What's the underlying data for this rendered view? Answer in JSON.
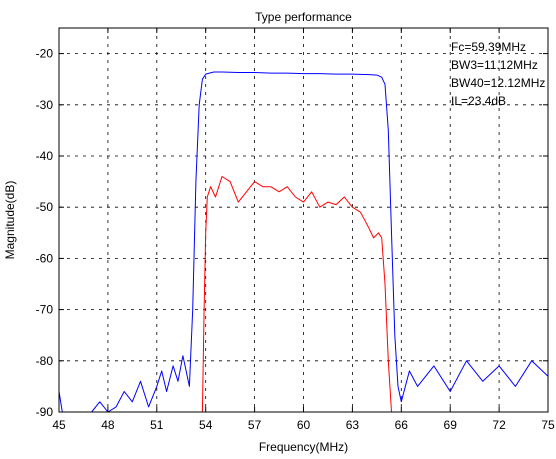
{
  "chart_data": {
    "type": "line",
    "title": "Type performance",
    "xlabel": "Frequency(MHz)",
    "ylabel": "Magnitude(dB)",
    "xlim": [
      45,
      75
    ],
    "ylim": [
      -90,
      -15
    ],
    "xticks": [
      45,
      48,
      51,
      54,
      57,
      60,
      63,
      66,
      69,
      72,
      75
    ],
    "yticks": [
      -90,
      -80,
      -70,
      -60,
      -50,
      -40,
      -30,
      -20
    ],
    "grid": true,
    "annotations": [
      "Fc=59.39MHz",
      "BW3=11.12MHz",
      "BW40=12.12MHz",
      "IL=23.4dB"
    ],
    "series": [
      {
        "color": "#0000ff",
        "x": [
          45,
          45.2,
          46,
          47,
          47.5,
          48,
          48.5,
          49,
          49.5,
          50,
          50.5,
          51,
          51.3,
          51.6,
          52,
          52.3,
          52.6,
          53,
          53.2,
          53.4,
          53.6,
          53.8,
          54,
          54.5,
          55,
          56,
          57,
          58,
          59,
          60,
          61,
          62,
          63,
          64,
          64.5,
          64.8,
          65.0,
          65.2,
          65.4,
          65.6,
          65.8,
          66,
          66.5,
          67,
          68,
          69,
          70,
          71,
          72,
          73,
          74,
          75
        ],
        "y": [
          -86,
          -90,
          -90,
          -90,
          -88,
          -90,
          -89,
          -86,
          -88,
          -84,
          -89,
          -85,
          -82,
          -86,
          -81,
          -84,
          -79,
          -85,
          -70,
          -45,
          -30,
          -25,
          -24,
          -23.6,
          -23.6,
          -23.7,
          -23.7,
          -23.8,
          -23.8,
          -23.9,
          -23.9,
          -24.0,
          -24.0,
          -24.1,
          -24.2,
          -24.6,
          -26,
          -35,
          -55,
          -75,
          -85,
          -88,
          -82,
          -85,
          -81,
          -86,
          -80,
          -84,
          -81,
          -85,
          -80,
          -83
        ]
      },
      {
        "color": "#ff0000",
        "x": [
          53.8,
          53.9,
          54.0,
          54.1,
          54.3,
          54.6,
          55,
          55.5,
          56,
          56.5,
          57,
          57.5,
          58,
          58.5,
          59,
          59.5,
          60,
          60.5,
          61,
          61.5,
          62,
          62.5,
          63,
          63.5,
          64,
          64.3,
          64.6,
          64.8,
          65.0,
          65.2,
          65.4
        ],
        "y": [
          -90,
          -70,
          -55,
          -48,
          -46,
          -48,
          -44,
          -45,
          -49,
          -47,
          -45,
          -46,
          -46,
          -47,
          -46,
          -48,
          -49,
          -47,
          -50,
          -49,
          -49.5,
          -48,
          -50,
          -51,
          -54,
          -56,
          -55,
          -56,
          -65,
          -80,
          -90
        ]
      }
    ]
  }
}
